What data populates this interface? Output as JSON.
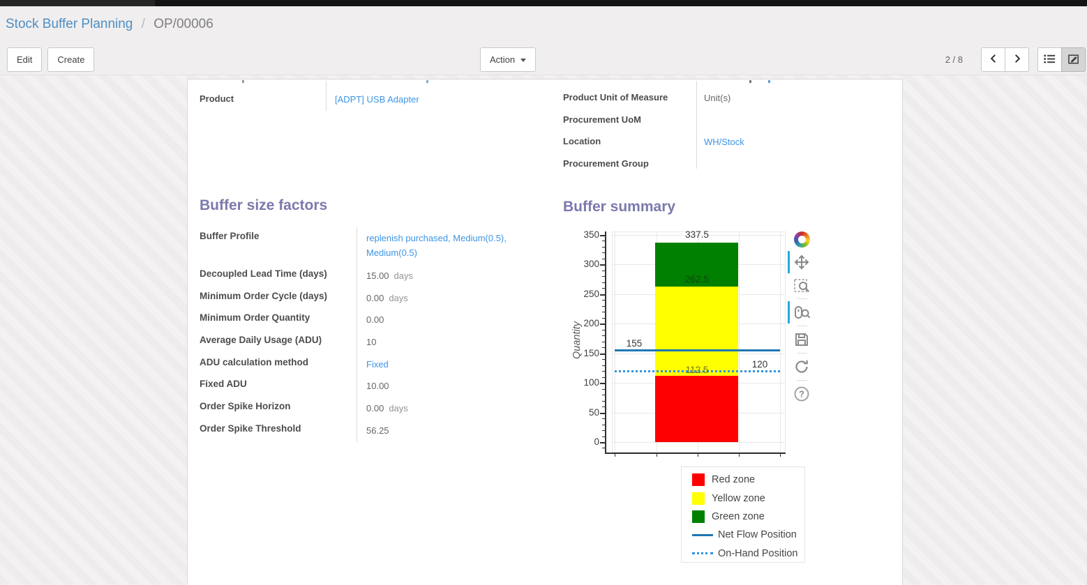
{
  "breadcrumb": {
    "parent": "Stock Buffer Planning",
    "separator": "/",
    "current": "OP/00006"
  },
  "control_panel": {
    "edit_label": "Edit",
    "create_label": "Create",
    "action_label": "Action",
    "pager_value": "2 / 8"
  },
  "header_fields": {
    "left": [
      {
        "label": "Product",
        "value": "[ADPT] USB Adapter",
        "is_link": true
      }
    ],
    "right": [
      {
        "label": "Product Unit of Measure",
        "value": "Unit(s)",
        "is_link": false
      },
      {
        "label": "Procurement UoM",
        "value": "",
        "is_link": false
      },
      {
        "label": "Location",
        "value": "WH/Stock",
        "is_link": true
      },
      {
        "label": "Procurement Group",
        "value": "",
        "is_link": false
      }
    ]
  },
  "buffer_size_factors": {
    "title": "Buffer size factors",
    "fields": [
      {
        "label": "Buffer Profile",
        "value": "replenish purchased, Medium(0.5), Medium(0.5)",
        "is_link": true,
        "suffix": ""
      },
      {
        "label": "Decoupled Lead Time (days)",
        "value": "15.00",
        "is_link": false,
        "suffix": "days"
      },
      {
        "label": "Minimum Order Cycle (days)",
        "value": "0.00",
        "is_link": false,
        "suffix": "days"
      },
      {
        "label": "Minimum Order Quantity",
        "value": "0.00",
        "is_link": false,
        "suffix": ""
      },
      {
        "label": "Average Daily Usage (ADU)",
        "value": "10",
        "is_link": false,
        "suffix": ""
      },
      {
        "label": "ADU calculation method",
        "value": "Fixed",
        "is_link": true,
        "suffix": ""
      },
      {
        "label": "Fixed ADU",
        "value": "10.00",
        "is_link": false,
        "suffix": ""
      },
      {
        "label": "Order Spike Horizon",
        "value": "0.00",
        "is_link": false,
        "suffix": "days"
      },
      {
        "label": "Order Spike Threshold",
        "value": "56.25",
        "is_link": false,
        "suffix": ""
      }
    ]
  },
  "buffer_summary": {
    "title": "Buffer summary"
  },
  "chart_data": {
    "type": "bar",
    "title": "",
    "xlabel": "",
    "ylabel": "Quantity",
    "ylim": [
      0,
      350
    ],
    "yticks": [
      0,
      50,
      100,
      150,
      200,
      250,
      300,
      350
    ],
    "grid": true,
    "zones": [
      {
        "name": "Red zone",
        "from": 0,
        "to": 112.5,
        "color": "#ff0000"
      },
      {
        "name": "Yellow zone",
        "from": 112.5,
        "to": 262.5,
        "color": "#ffff00"
      },
      {
        "name": "Green zone",
        "from": 262.5,
        "to": 337.5,
        "color": "#008000"
      }
    ],
    "lines": [
      {
        "name": "Net Flow Position",
        "value": 155,
        "style": "solid",
        "color": "#1f77b4"
      },
      {
        "name": "On-Hand Position",
        "value": 120,
        "style": "dotted",
        "color": "#2e95e0"
      }
    ],
    "annotations": [
      {
        "text": "337.5",
        "anchor": "bar-top",
        "tone": "dark"
      },
      {
        "text": "262.5",
        "anchor": "green-yellow-boundary",
        "tone": "muted"
      },
      {
        "text": "112.5",
        "anchor": "red-yellow-boundary",
        "tone": "muted"
      },
      {
        "text": "155",
        "anchor": "nfp-line-left",
        "tone": "dark"
      },
      {
        "text": "120",
        "anchor": "ohp-line-right",
        "tone": "dark"
      }
    ],
    "legend": [
      {
        "label": "Red zone",
        "swatch": "square",
        "color": "#ff0000"
      },
      {
        "label": "Yellow zone",
        "swatch": "square",
        "color": "#ffff00"
      },
      {
        "label": "Green zone",
        "swatch": "square",
        "color": "#008000"
      },
      {
        "label": "Net Flow Position",
        "swatch": "line",
        "color": "#1f77b4"
      },
      {
        "label": "On-Hand Position",
        "swatch": "dotted",
        "color": "#2e95e0"
      }
    ],
    "toolbar": [
      "bokeh-logo",
      "pan",
      "box-zoom",
      "wheel-zoom",
      "save",
      "reset",
      "help"
    ],
    "active_tools": [
      "pan",
      "wheel-zoom"
    ],
    "legend_position": "below-right"
  },
  "colors": {
    "field_link": "#3d94e6",
    "breadcrumb_link": "#4d8fc4",
    "section_title": "#7b79ac",
    "toolbar_active_indicator": "#26a9e0"
  }
}
